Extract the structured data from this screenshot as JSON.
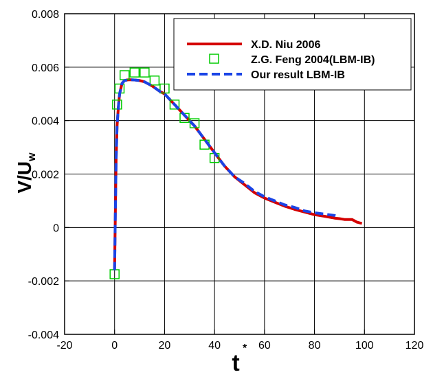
{
  "chart_data": {
    "type": "line",
    "xlabel": "t",
    "xlabel_superscript": "*",
    "ylabel": "V/U",
    "ylabel_subscript": "w",
    "xlim": [
      -20,
      120
    ],
    "ylim": [
      -0.004,
      0.008
    ],
    "x_ticks": [
      "-20",
      "0",
      "20",
      "40",
      "60",
      "80",
      "100",
      "120"
    ],
    "y_ticks": [
      "-0.004",
      "-0.002",
      "0",
      "0.002",
      "0.004",
      "0.006",
      "0.008"
    ],
    "grid": true,
    "legend_position": "top-right",
    "series": [
      {
        "name": "X.D. Niu 2006",
        "style": "solid-line",
        "color": "#d40000",
        "x": [
          0,
          0.3,
          0.6,
          1,
          1.5,
          2,
          3,
          4,
          5,
          6,
          8,
          10,
          12,
          15,
          18,
          20,
          24,
          28,
          32,
          36,
          40,
          44,
          48,
          52,
          56,
          60,
          64,
          68,
          72,
          76,
          80,
          84,
          88,
          90,
          92,
          95,
          97,
          99
        ],
        "y": [
          -0.0016,
          0.0005,
          0.0025,
          0.0038,
          0.0045,
          0.005,
          0.0054,
          0.0055,
          0.00552,
          0.00553,
          0.00552,
          0.0055,
          0.00545,
          0.0053,
          0.0051,
          0.005,
          0.0046,
          0.0042,
          0.0038,
          0.0033,
          0.0028,
          0.0023,
          0.0019,
          0.0016,
          0.0013,
          0.0011,
          0.00095,
          0.0008,
          0.00068,
          0.00058,
          0.00048,
          0.00042,
          0.00035,
          0.00033,
          0.0003,
          0.0003,
          0.0002,
          0.00015
        ]
      },
      {
        "name": "Z.G. Feng 2004(LBM-IB)",
        "style": "open-square-markers",
        "color": "#00cc00",
        "x": [
          0,
          1,
          2,
          4,
          8,
          12,
          16,
          20,
          24,
          28,
          32,
          36,
          40
        ],
        "y": [
          -0.00175,
          0.0046,
          0.0052,
          0.0057,
          0.0058,
          0.0058,
          0.0055,
          0.0052,
          0.0046,
          0.0041,
          0.0039,
          0.0031,
          0.0026
        ]
      },
      {
        "name": "Our result LBM-IB",
        "style": "dashed-line",
        "color": "#1a44e6",
        "x": [
          0,
          0.3,
          0.6,
          1,
          1.5,
          2,
          3,
          4,
          5,
          6,
          8,
          10,
          12,
          15,
          18,
          20,
          24,
          28,
          32,
          36,
          40,
          44,
          48,
          52,
          56,
          60,
          64,
          68,
          72,
          76,
          80,
          84,
          88,
          90
        ],
        "y": [
          -0.0016,
          0.0005,
          0.0025,
          0.0038,
          0.0045,
          0.005,
          0.0054,
          0.0055,
          0.00552,
          0.00553,
          0.00552,
          0.0055,
          0.00545,
          0.0053,
          0.0051,
          0.005,
          0.0046,
          0.0042,
          0.0038,
          0.0033,
          0.0028,
          0.0023,
          0.0019,
          0.00165,
          0.00135,
          0.00115,
          0.001,
          0.00085,
          0.00075,
          0.00062,
          0.00055,
          0.0005,
          0.00045,
          0.0004
        ]
      }
    ]
  }
}
